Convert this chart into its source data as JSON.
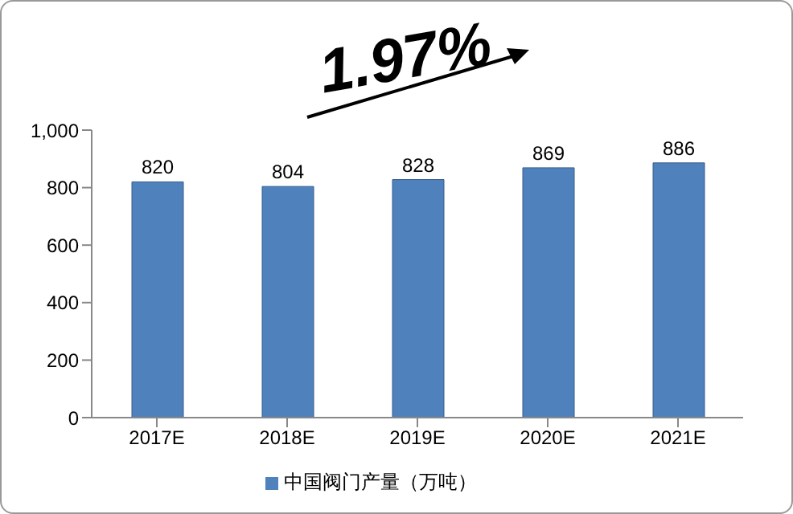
{
  "chart_data": {
    "type": "bar",
    "annotations": [
      "1.97%"
    ],
    "categories": [
      "2017E",
      "2018E",
      "2019E",
      "2020E",
      "2021E"
    ],
    "series": [
      {
        "name": "中国阀门产量（万吨）",
        "color": "#4f81bd",
        "values": [
          820,
          804,
          828,
          869,
          886
        ]
      }
    ],
    "ylim": [
      0,
      1000
    ],
    "yticks": [
      0,
      200,
      400,
      600,
      800,
      {
        "value": 1000,
        "label": "1,000"
      }
    ],
    "data_labels": true,
    "legend": "bottom"
  }
}
